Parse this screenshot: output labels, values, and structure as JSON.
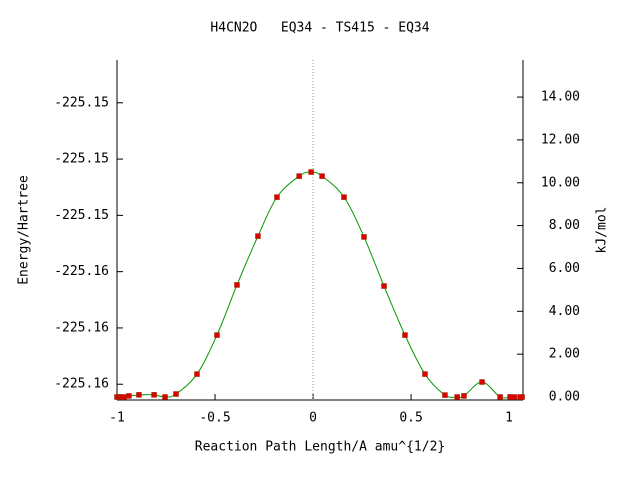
{
  "chart_data": {
    "type": "line",
    "title": "H4CN2O   EQ34 - TS415 - EQ34",
    "x_label": "Reaction Path Length/A amu^{1/2}",
    "y_label": "Energy/Hartree",
    "y2_label": "kJ/mol",
    "xlim": [
      -1,
      1.071
    ],
    "xticks": [
      -1,
      -0.5,
      0,
      0.5,
      1
    ],
    "ylim": [
      -225.15778,
      -225.15174
    ],
    "yticks": [
      {
        "value": -225.1575,
        "label": "-225.16"
      },
      {
        "value": -225.1565,
        "label": "-225.16"
      },
      {
        "value": -225.1555,
        "label": "-225.16"
      },
      {
        "value": -225.1545,
        "label": "-225.15"
      },
      {
        "value": -225.1535,
        "label": "-225.15"
      },
      {
        "value": -225.1525,
        "label": "-225.15"
      }
    ],
    "y2lim": [
      -0.14,
      15.73
    ],
    "y2ticks": [
      {
        "value": 0,
        "label": "0.00"
      },
      {
        "value": 2,
        "label": "2.00"
      },
      {
        "value": 4,
        "label": "4.00"
      },
      {
        "value": 6,
        "label": "6.00"
      },
      {
        "value": 8,
        "label": "8.00"
      },
      {
        "value": 10,
        "label": "10.00"
      },
      {
        "value": 12,
        "label": "12.00"
      },
      {
        "value": 14,
        "label": "14.00"
      }
    ],
    "reference_line_x": 0,
    "x": [
      -1.0,
      -0.99,
      -0.98,
      -0.964,
      -0.939,
      -0.888,
      -0.811,
      -0.755,
      -0.699,
      -0.592,
      -0.49,
      -0.388,
      -0.281,
      -0.184,
      -0.071,
      -0.01,
      0.046,
      0.158,
      0.26,
      0.362,
      0.469,
      0.571,
      0.673,
      0.735,
      0.77,
      0.862,
      0.954,
      1.005,
      1.026,
      1.056,
      1.066
    ],
    "series": [
      {
        "name": "EQ34 - TS415 - EQ34",
        "axis": "y2",
        "color": "#009900",
        "marker_color": "#dd0000",
        "values": [
          0,
          0,
          0,
          0,
          0.05,
          0.1,
          0.1,
          0,
          0.14,
          1.07,
          2.89,
          5.23,
          7.51,
          9.33,
          10.31,
          10.5,
          10.31,
          9.33,
          7.47,
          5.18,
          2.89,
          1.07,
          0.09,
          0,
          0.05,
          0.7,
          0,
          0,
          0,
          0,
          0
        ]
      }
    ]
  }
}
